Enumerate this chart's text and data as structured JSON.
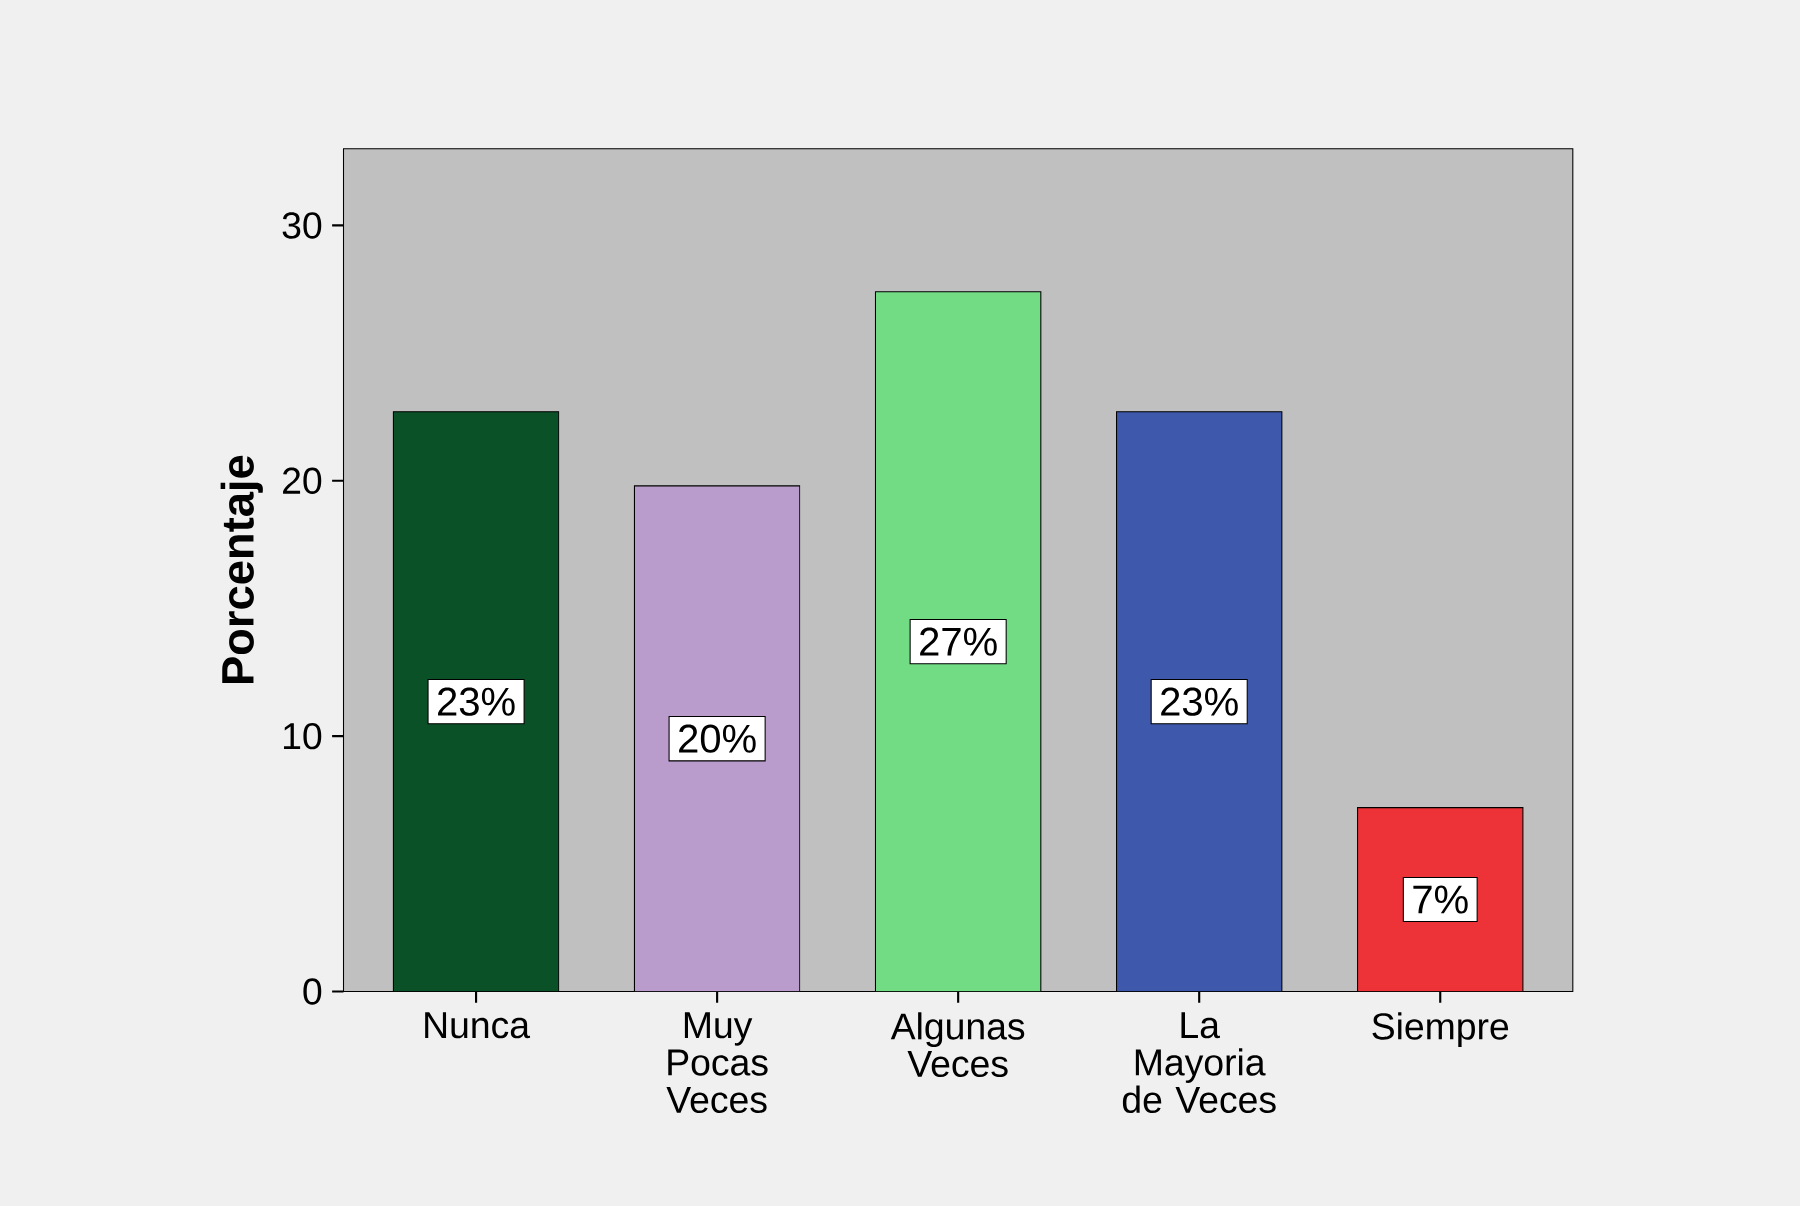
{
  "chart_data": {
    "type": "bar",
    "ylabel": "Porcentaje",
    "categories": [
      "Nunca",
      "Muy Pocas Veces",
      "Algunas Veces",
      "La Mayoria de Veces",
      "Siempre"
    ],
    "values": [
      22.7,
      19.8,
      27.4,
      22.7,
      7.2
    ],
    "value_labels": [
      "23%",
      "20%",
      "27%",
      "23%",
      "7%"
    ],
    "colors": [
      "#0a5128",
      "#b99ccb",
      "#72dc84",
      "#3e58ab",
      "#ee3338"
    ],
    "ylim": [
      0,
      33
    ],
    "yticks": [
      0,
      10,
      20,
      30
    ]
  }
}
